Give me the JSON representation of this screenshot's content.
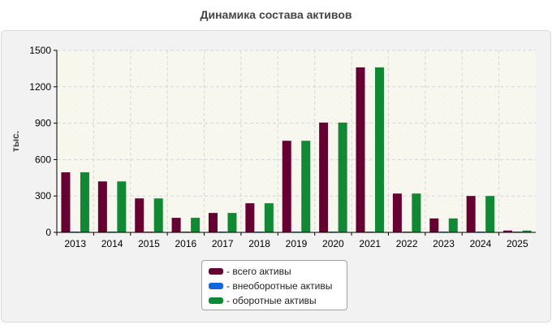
{
  "chart_data": {
    "type": "bar",
    "title": "Динамика состава активов",
    "ylabel": "тыс.",
    "xlabel": "",
    "ylim": [
      0,
      1500
    ],
    "yticks": [
      0,
      300,
      600,
      900,
      1200,
      1500
    ],
    "grid": true,
    "legend_position": "bottom-center",
    "categories": [
      "2013",
      "2014",
      "2015",
      "2016",
      "2017",
      "2018",
      "2019",
      "2020",
      "2021",
      "2022",
      "2023",
      "2024",
      "2025"
    ],
    "series": [
      {
        "name": "- всего активы",
        "color": "#660033",
        "values": [
          495,
          420,
          280,
          120,
          160,
          240,
          755,
          905,
          1360,
          320,
          115,
          300,
          15
        ]
      },
      {
        "name": "- внеоборотные активы",
        "color": "#1166dd",
        "values": [
          2,
          2,
          2,
          2,
          2,
          2,
          2,
          2,
          2,
          2,
          2,
          2,
          2
        ]
      },
      {
        "name": "- оборотные активы",
        "color": "#118833",
        "values": [
          495,
          420,
          280,
          120,
          160,
          240,
          755,
          905,
          1360,
          320,
          115,
          300,
          15
        ]
      }
    ]
  }
}
